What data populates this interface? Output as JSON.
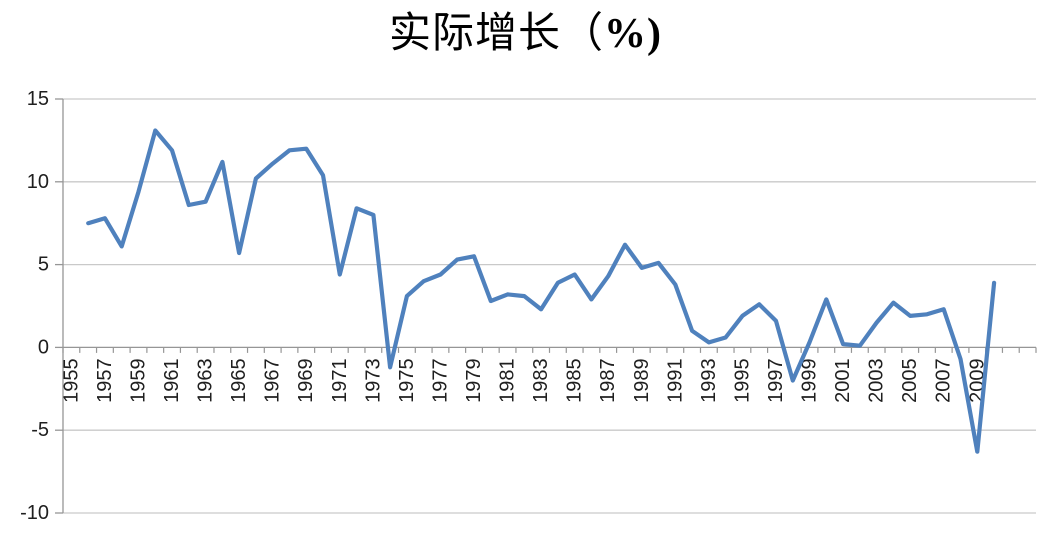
{
  "chart_data": {
    "type": "line",
    "title": "实际增长（%)",
    "title_main": "实际增长（",
    "title_suffix": "%)",
    "legend": "none",
    "grid": "horizontal",
    "x": [
      1956,
      1957,
      1958,
      1959,
      1960,
      1961,
      1962,
      1963,
      1964,
      1965,
      1966,
      1967,
      1968,
      1969,
      1970,
      1971,
      1972,
      1973,
      1974,
      1975,
      1976,
      1977,
      1978,
      1979,
      1980,
      1981,
      1982,
      1983,
      1984,
      1985,
      1986,
      1987,
      1988,
      1989,
      1990,
      1991,
      1992,
      1993,
      1994,
      1995,
      1996,
      1997,
      1998,
      1999,
      2000,
      2001,
      2002,
      2003,
      2004,
      2005,
      2006,
      2007,
      2008,
      2009,
      2010
    ],
    "values": [
      7.5,
      7.8,
      6.1,
      9.4,
      13.1,
      11.9,
      8.6,
      8.8,
      11.2,
      5.7,
      10.2,
      11.1,
      11.9,
      12.0,
      10.4,
      4.4,
      8.4,
      8.0,
      -1.2,
      3.1,
      4.0,
      4.4,
      5.3,
      5.5,
      2.8,
      3.2,
      3.1,
      2.3,
      3.9,
      4.4,
      2.9,
      4.3,
      6.2,
      4.8,
      5.1,
      3.8,
      1.0,
      0.3,
      0.6,
      1.9,
      2.6,
      1.6,
      -2.0,
      0.3,
      2.9,
      0.2,
      0.1,
      1.5,
      2.7,
      1.9,
      2.0,
      2.3,
      -0.7,
      -6.3,
      3.9
    ],
    "x_axis": {
      "range_start": 1955,
      "range_end": 2012,
      "tick_interval_years": 1,
      "label_interval_years": 2,
      "label_rotation_deg": -90,
      "labels": [
        "1955",
        "1957",
        "1959",
        "1961",
        "1963",
        "1965",
        "1967",
        "1969",
        "1971",
        "1973",
        "1975",
        "1977",
        "1979",
        "1981",
        "1983",
        "1985",
        "1987",
        "1989",
        "1991",
        "1993",
        "1995",
        "1997",
        "1999",
        "2001",
        "2003",
        "2005",
        "2007",
        "2009"
      ]
    },
    "y_axis": {
      "min": -10,
      "max": 15,
      "step": 5,
      "labels": [
        "15",
        "10",
        "5",
        "0",
        "-5",
        "-10"
      ]
    },
    "colors": {
      "line": "#4F81BD",
      "gridline": "#C9C9C9",
      "axis": "#969696",
      "text": "#1F1F1F"
    }
  }
}
